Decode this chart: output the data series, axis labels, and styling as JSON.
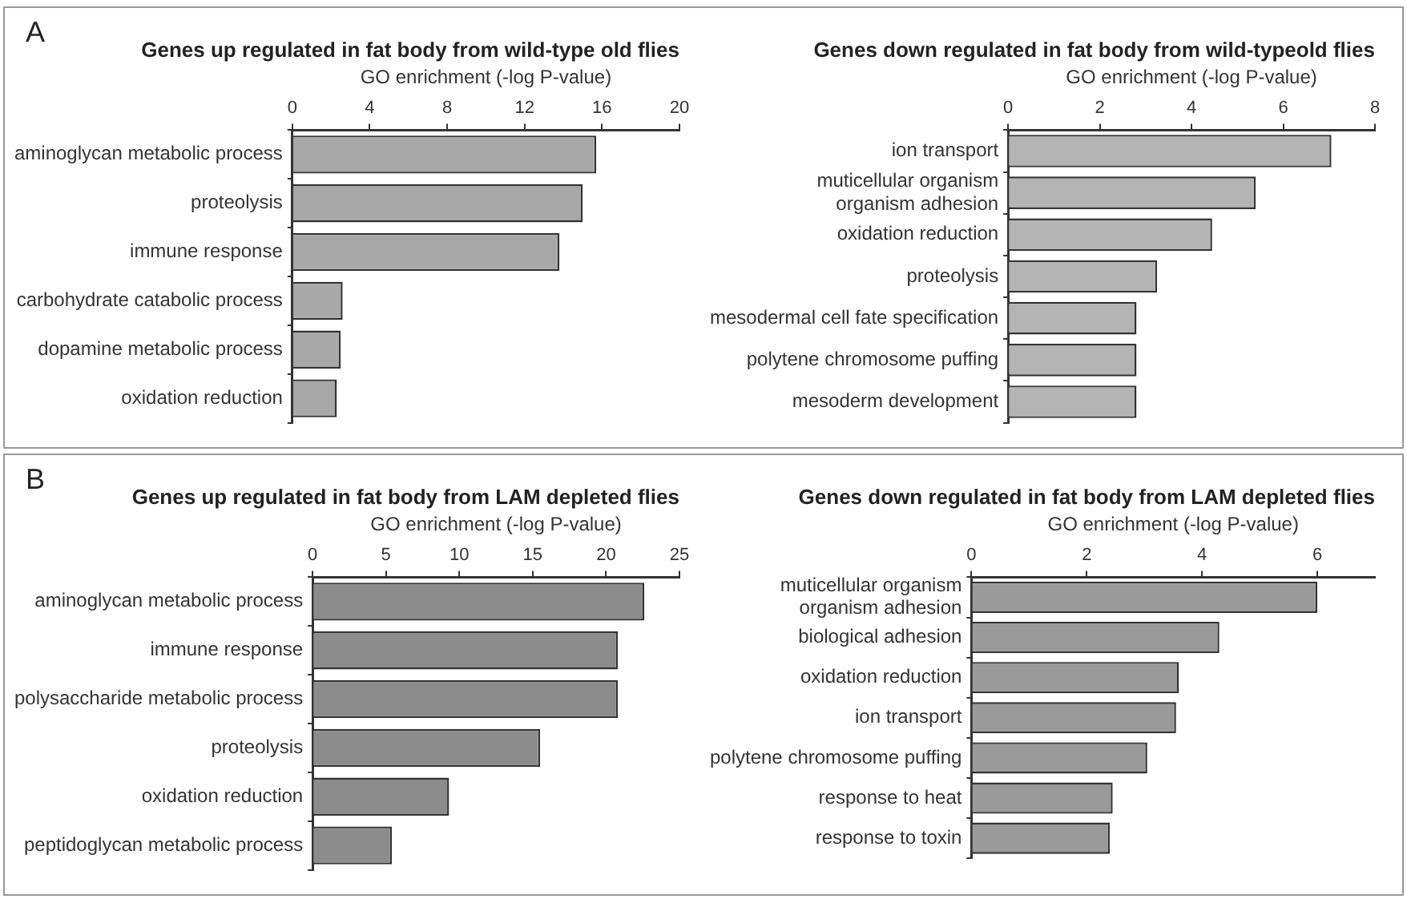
{
  "chart_data": [
    {
      "type": "bar",
      "orientation": "horizontal",
      "title": "Genes up regulated in fat body from wild-type old flies",
      "xlabel": "GO enrichment (-log P-value)",
      "annotations": [
        "A"
      ],
      "categories": [
        "aminoglycan metabolic process",
        "proteolysis",
        "immune response",
        "carbohydrate catabolic process",
        "dopamine metabolic process",
        "oxidation reduction"
      ],
      "values": [
        15.7,
        15.0,
        13.8,
        2.6,
        2.5,
        2.3
      ],
      "color": "#a8a8a8",
      "xlim": [
        0,
        20
      ],
      "xticks": [
        0,
        4,
        8,
        12,
        16,
        20
      ],
      "grid": false,
      "legend": false
    },
    {
      "type": "bar",
      "orientation": "horizontal",
      "title": "Genes down regulated in fat body from wild-typeold flies",
      "xlabel": "GO enrichment (-log P-value)",
      "categories": [
        "ion transport",
        "muticellular organism\norganism adhesion",
        "oxidation reduction",
        "proteolysis",
        "mesodermal cell fate specification",
        "polytene chromosome puffing",
        "mesoderm development"
      ],
      "values": [
        7.05,
        5.4,
        4.45,
        3.25,
        2.8,
        2.8,
        2.8
      ],
      "color": "#b4b4b4",
      "xlim": [
        0,
        8
      ],
      "xticks": [
        0,
        2,
        4,
        6,
        8
      ],
      "grid": false,
      "legend": false
    },
    {
      "type": "bar",
      "orientation": "horizontal",
      "title": "Genes up regulated in fat body from LAM depleted flies",
      "xlabel": "GO enrichment (-log P-value)",
      "annotations": [
        "B"
      ],
      "categories": [
        "aminoglycan metabolic process",
        "immune response",
        "polysaccharide metabolic process",
        "proteolysis",
        "oxidation reduction",
        "peptidoglycan metabolic process"
      ],
      "values": [
        22.6,
        20.8,
        20.8,
        15.5,
        9.3,
        5.4
      ],
      "color": "#8c8c8c",
      "xlim": [
        0,
        25
      ],
      "xticks": [
        0,
        5,
        10,
        15,
        20,
        25
      ],
      "grid": false,
      "legend": false
    },
    {
      "type": "bar",
      "orientation": "horizontal",
      "title": "Genes down regulated in fat body from LAM depleted flies",
      "xlabel": "GO enrichment (-log P-value)",
      "categories": [
        "muticellular organism\norganism adhesion",
        "biological adhesion",
        "oxidation reduction",
        "ion transport",
        "polytene chromosome puffing",
        "response to heat",
        "response to toxin"
      ],
      "values": [
        6.0,
        4.3,
        3.6,
        3.55,
        3.05,
        2.45,
        2.4
      ],
      "color": "#9a9a9a",
      "xlim": [
        0,
        7
      ],
      "xticks": [
        0,
        2,
        4,
        6
      ],
      "grid": false,
      "legend": false
    }
  ]
}
